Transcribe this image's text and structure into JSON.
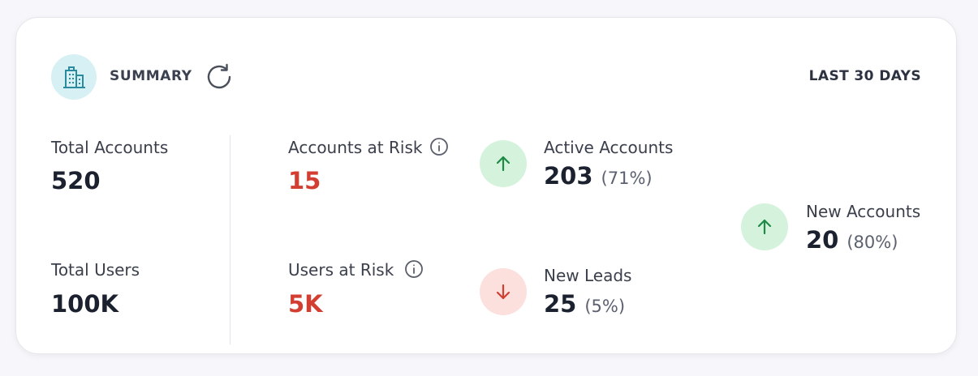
{
  "header": {
    "title": "SUMMARY",
    "period": "LAST 30 DAYS"
  },
  "metrics": {
    "total_accounts": {
      "label": "Total Accounts",
      "value": "520"
    },
    "total_users": {
      "label": "Total Users",
      "value": "100K"
    },
    "accounts_at_risk": {
      "label": "Accounts at Risk",
      "value": "15"
    },
    "users_at_risk": {
      "label": "Users at Risk",
      "value": "5K"
    },
    "active_accounts": {
      "label": "Active Accounts",
      "value": "203",
      "percent": "(71%)",
      "trend": "up"
    },
    "new_leads": {
      "label": "New Leads",
      "value": "25",
      "percent": "(5%)",
      "trend": "down"
    },
    "new_accounts": {
      "label": "New Accounts",
      "value": "20",
      "percent": "(80%)",
      "trend": "up"
    }
  },
  "colors": {
    "risk": "#d23f32",
    "up": "#1e8a45",
    "down": "#d23f32",
    "header_icon_bg": "#d6f0f4",
    "header_icon": "#2a8a9e"
  },
  "icons": {
    "header": "building-icon",
    "refresh": "refresh-icon",
    "info": "info-icon",
    "up": "arrow-up-icon",
    "down": "arrow-down-icon"
  }
}
